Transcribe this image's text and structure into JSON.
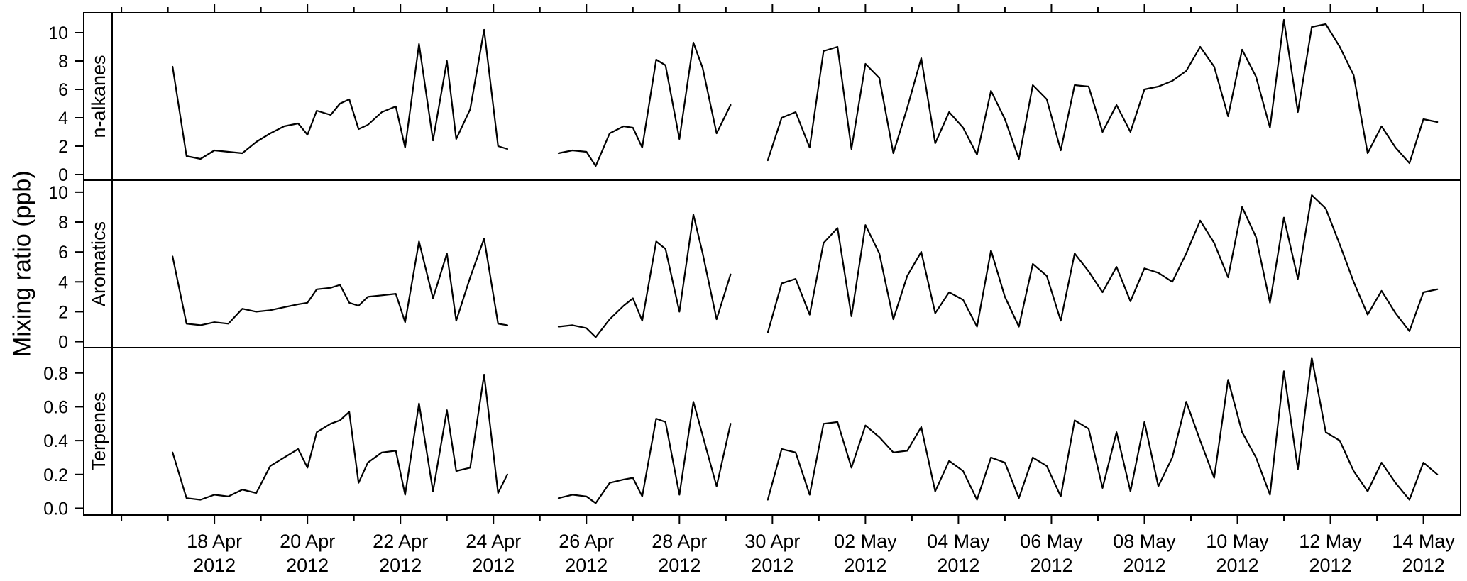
{
  "chart_data": {
    "type": "line",
    "title": "",
    "ylabel": "Mixing ratio (ppb)",
    "line_color": "#000000",
    "background": "#ffffff",
    "grid": false,
    "legend": false,
    "layout": "three stacked panels, shared x axis, left strip labels",
    "x_axis": {
      "unit": "date",
      "epoch": "day 0 = 17 Apr 2012",
      "xlim_days": [
        -1.2,
        27.8
      ],
      "minor_tick_interval_days": 1,
      "major_ticks": [
        {
          "day": 1,
          "label": "18 Apr",
          "year": "2012"
        },
        {
          "day": 3,
          "label": "20 Apr",
          "year": "2012"
        },
        {
          "day": 5,
          "label": "22 Apr",
          "year": "2012"
        },
        {
          "day": 7,
          "label": "24 Apr",
          "year": "2012"
        },
        {
          "day": 9,
          "label": "26 Apr",
          "year": "2012"
        },
        {
          "day": 11,
          "label": "28 Apr",
          "year": "2012"
        },
        {
          "day": 13,
          "label": "30 Apr",
          "year": "2012"
        },
        {
          "day": 15,
          "label": "02 May",
          "year": "2012"
        },
        {
          "day": 17,
          "label": "04 May",
          "year": "2012"
        },
        {
          "day": 19,
          "label": "06 May",
          "year": "2012"
        },
        {
          "day": 21,
          "label": "08 May",
          "year": "2012"
        },
        {
          "day": 23,
          "label": "10 May",
          "year": "2012"
        },
        {
          "day": 25,
          "label": "12 May",
          "year": "2012"
        },
        {
          "day": 27,
          "label": "14 May",
          "year": "2012"
        }
      ]
    },
    "segment_x_days": [
      [
        0.1,
        0.4,
        0.7,
        1.0,
        1.3,
        1.6,
        1.9,
        2.2,
        2.5,
        2.8,
        3.0,
        3.2,
        3.5,
        3.7,
        3.9,
        4.1,
        4.3,
        4.6,
        4.9,
        5.1,
        5.4,
        5.7,
        6.0,
        6.2,
        6.5,
        6.8,
        7.1,
        7.3
      ],
      [
        8.4,
        8.7,
        9.0,
        9.2,
        9.5,
        9.8,
        10.0,
        10.2,
        10.5,
        10.7,
        11.0,
        11.3,
        11.5,
        11.8,
        12.1
      ],
      [
        12.9,
        13.2,
        13.5,
        13.8,
        14.1,
        14.4,
        14.7,
        15.0,
        15.3,
        15.6,
        15.9,
        16.2,
        16.5,
        16.8,
        17.1,
        17.4,
        17.7,
        18.0,
        18.3,
        18.6,
        18.9,
        19.2,
        19.5,
        19.8,
        20.1,
        20.4,
        20.7,
        21.0,
        21.3,
        21.6,
        21.9,
        22.2,
        22.5,
        22.8,
        23.1,
        23.4,
        23.7,
        24.0,
        24.3,
        24.6,
        24.9,
        25.2,
        25.5,
        25.8,
        26.1,
        26.4,
        26.7,
        27.0,
        27.3
      ]
    ],
    "panels": [
      {
        "label": "n-alkanes",
        "ylim": [
          -0.4,
          11.4
        ],
        "yticks": [
          0,
          2,
          4,
          6,
          8,
          10
        ],
        "ytick_labels": [
          "0",
          "2",
          "4",
          "6",
          "8",
          "10"
        ],
        "segments_y": [
          [
            7.6,
            1.3,
            1.1,
            1.7,
            1.6,
            1.5,
            2.3,
            2.9,
            3.4,
            3.6,
            2.8,
            4.5,
            4.2,
            5.0,
            5.3,
            3.2,
            3.5,
            4.4,
            4.8,
            1.9,
            9.2,
            2.4,
            8.0,
            2.5,
            4.6,
            10.2,
            2.0,
            1.8
          ],
          [
            1.5,
            1.7,
            1.6,
            0.6,
            2.9,
            3.4,
            3.3,
            1.9,
            8.1,
            7.7,
            2.5,
            9.3,
            7.5,
            2.9,
            4.9
          ],
          [
            1.0,
            4.0,
            4.4,
            1.9,
            8.7,
            9.0,
            1.8,
            7.8,
            6.8,
            1.5,
            4.7,
            8.2,
            2.2,
            4.4,
            3.3,
            1.4,
            5.9,
            3.9,
            1.1,
            6.3,
            5.3,
            1.7,
            6.3,
            6.2,
            3.0,
            4.9,
            3.0,
            6.0,
            6.2,
            6.6,
            7.3,
            9.0,
            7.6,
            4.1,
            8.8,
            6.9,
            3.3,
            10.9,
            4.4,
            10.4,
            10.6,
            9.0,
            7.0,
            1.5,
            3.4,
            1.9,
            0.8,
            3.9,
            3.7
          ]
        ]
      },
      {
        "label": "Aromatics",
        "ylim": [
          -0.4,
          10.8
        ],
        "yticks": [
          0,
          2,
          4,
          6,
          8,
          10
        ],
        "ytick_labels": [
          "0",
          "2",
          "4",
          "6",
          "8",
          "10"
        ],
        "segments_y": [
          [
            5.7,
            1.2,
            1.1,
            1.3,
            1.2,
            2.2,
            2.0,
            2.1,
            2.3,
            2.5,
            2.6,
            3.5,
            3.6,
            3.8,
            2.6,
            2.4,
            3.0,
            3.1,
            3.2,
            1.3,
            6.7,
            2.9,
            5.9,
            1.4,
            4.3,
            6.9,
            1.2,
            1.1
          ],
          [
            1.0,
            1.1,
            0.9,
            0.3,
            1.5,
            2.4,
            2.9,
            1.4,
            6.7,
            6.2,
            2.0,
            8.5,
            5.9,
            1.5,
            4.5
          ],
          [
            0.6,
            3.9,
            4.2,
            1.8,
            6.6,
            7.6,
            1.7,
            7.8,
            5.9,
            1.5,
            4.4,
            6.0,
            1.9,
            3.3,
            2.8,
            1.0,
            6.1,
            3.0,
            1.0,
            5.2,
            4.4,
            1.4,
            5.9,
            4.7,
            3.3,
            5.0,
            2.7,
            4.9,
            4.6,
            4.0,
            5.9,
            8.1,
            6.6,
            4.3,
            9.0,
            7.0,
            2.6,
            8.3,
            4.2,
            9.8,
            8.9,
            6.5,
            4.0,
            1.8,
            3.4,
            1.9,
            0.7,
            3.3,
            3.5
          ]
        ]
      },
      {
        "label": "Terpenes",
        "ylim": [
          -0.04,
          0.95
        ],
        "yticks": [
          0,
          0.2,
          0.4,
          0.6,
          0.8
        ],
        "ytick_labels": [
          "0.0",
          "0.2",
          "0.4",
          "0.6",
          "0.8"
        ],
        "segments_y": [
          [
            0.33,
            0.06,
            0.05,
            0.08,
            0.07,
            0.11,
            0.09,
            0.25,
            0.3,
            0.35,
            0.24,
            0.45,
            0.5,
            0.52,
            0.57,
            0.15,
            0.27,
            0.33,
            0.34,
            0.08,
            0.62,
            0.1,
            0.58,
            0.22,
            0.24,
            0.79,
            0.09,
            0.2
          ],
          [
            0.06,
            0.08,
            0.07,
            0.03,
            0.15,
            0.17,
            0.18,
            0.07,
            0.53,
            0.51,
            0.08,
            0.63,
            0.43,
            0.13,
            0.5
          ],
          [
            0.05,
            0.35,
            0.33,
            0.08,
            0.5,
            0.51,
            0.24,
            0.49,
            0.42,
            0.33,
            0.34,
            0.48,
            0.1,
            0.28,
            0.22,
            0.05,
            0.3,
            0.27,
            0.06,
            0.3,
            0.25,
            0.07,
            0.52,
            0.47,
            0.12,
            0.45,
            0.1,
            0.51,
            0.13,
            0.3,
            0.63,
            0.4,
            0.18,
            0.76,
            0.45,
            0.3,
            0.08,
            0.81,
            0.23,
            0.89,
            0.45,
            0.4,
            0.22,
            0.1,
            0.27,
            0.15,
            0.05,
            0.27,
            0.2
          ]
        ]
      }
    ]
  }
}
